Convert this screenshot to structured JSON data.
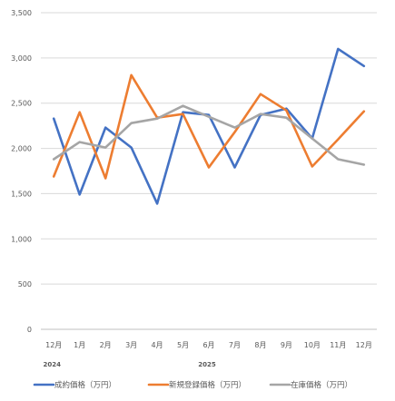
{
  "chart_data": {
    "type": "line",
    "title": "",
    "xlabel": "",
    "ylabel": "",
    "categories": [
      "12月",
      "1月",
      "2月",
      "3月",
      "4月",
      "5月",
      "6月",
      "7月",
      "8月",
      "9月",
      "10月",
      "11月",
      "12月"
    ],
    "year_labels": [
      {
        "label": "2024",
        "index": 0
      },
      {
        "label": "2025",
        "index": 6
      }
    ],
    "ylim": [
      0,
      3500
    ],
    "yticks": [
      0,
      500,
      1000,
      1500,
      2000,
      2500,
      3000,
      3500
    ],
    "ytick_labels": [
      "0",
      "500",
      "1,000",
      "1,500",
      "2,000",
      "2,500",
      "3,000",
      "3,500"
    ],
    "grid": true,
    "legend_position": "bottom",
    "series": [
      {
        "name": "成約価格（万円）",
        "color": "#4472C4",
        "values": [
          2330,
          1490,
          2230,
          2010,
          1390,
          2400,
          2370,
          1790,
          2370,
          2440,
          2110,
          3100,
          2910
        ]
      },
      {
        "name": "新規登録価格（万円）",
        "color": "#ED7D31",
        "values": [
          1690,
          2400,
          1670,
          2810,
          2340,
          2380,
          1790,
          2180,
          2600,
          2420,
          1800,
          2100,
          2410
        ]
      },
      {
        "name": "在庫価格（万円）",
        "color": "#A5A5A5",
        "values": [
          1880,
          2070,
          2010,
          2280,
          2330,
          2470,
          2350,
          2230,
          2380,
          2340,
          2110,
          1880,
          1820
        ]
      }
    ]
  }
}
